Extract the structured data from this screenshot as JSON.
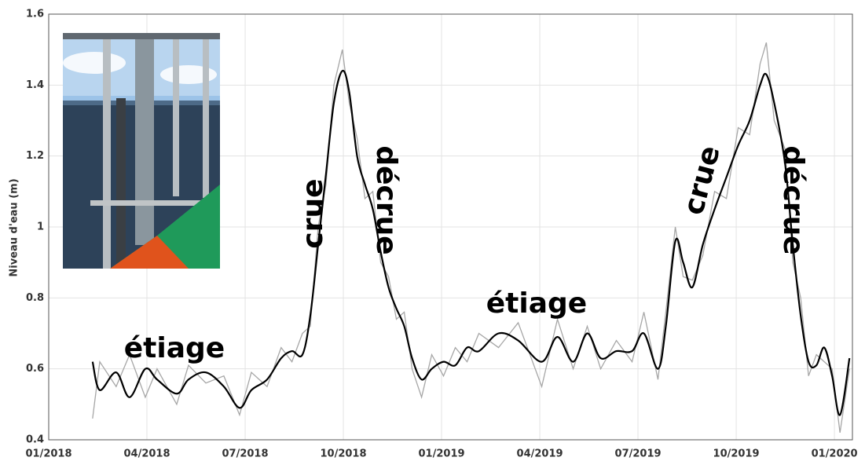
{
  "chart_data": {
    "type": "line",
    "y_label": "Niveau d'eau (m)",
    "annotations": [
      "étiage",
      "crue",
      "décrue",
      "étiage",
      "crue",
      "décrue"
    ],
    "x": [
      1.34,
      1.56,
      2.06,
      2.47,
      2.95,
      3.31,
      3.91,
      4.27,
      4.8,
      5.35,
      5.83,
      6.19,
      6.67,
      7.1,
      7.43,
      7.75,
      7.99,
      8.23,
      8.47,
      8.71,
      8.97,
      9.18,
      9.42,
      9.66,
      9.9,
      10.14,
      10.38,
      10.62,
      10.86,
      11.1,
      11.39,
      11.7,
      12.06,
      12.42,
      12.78,
      13.14,
      13.74,
      14.34,
      15.06,
      15.54,
      16.02,
      16.45,
      16.86,
      17.34,
      17.82,
      18.18,
      18.61,
      18.85,
      19.14,
      19.38,
      19.66,
      19.98,
      20.34,
      20.7,
      21.06,
      21.41,
      21.73,
      21.92,
      22.16,
      22.49,
      22.73,
      22.97,
      23.21,
      23.45,
      23.69,
      23.93,
      24.17,
      24.46
    ],
    "series": [
      {
        "color": "#a6a6a6",
        "values": [
          0.46,
          0.62,
          0.55,
          0.64,
          0.52,
          0.6,
          0.5,
          0.61,
          0.56,
          0.58,
          0.47,
          0.59,
          0.55,
          0.66,
          0.62,
          0.7,
          0.72,
          1.0,
          1.12,
          1.4,
          1.5,
          1.35,
          1.25,
          1.08,
          1.1,
          0.9,
          0.86,
          0.74,
          0.76,
          0.6,
          0.52,
          0.64,
          0.58,
          0.66,
          0.62,
          0.7,
          0.66,
          0.73,
          0.55,
          0.74,
          0.6,
          0.72,
          0.6,
          0.68,
          0.62,
          0.76,
          0.57,
          0.76,
          1.0,
          0.86,
          0.85,
          0.92,
          1.1,
          1.08,
          1.28,
          1.26,
          1.46,
          1.52,
          1.3,
          1.22,
          0.9,
          0.8,
          0.58,
          0.64,
          0.62,
          0.6,
          0.42,
          0.6
        ]
      },
      {
        "color": "#000000",
        "values": [
          0.62,
          0.54,
          0.59,
          0.52,
          0.6,
          0.57,
          0.53,
          0.57,
          0.59,
          0.55,
          0.49,
          0.54,
          0.57,
          0.63,
          0.65,
          0.64,
          0.75,
          0.95,
          1.15,
          1.35,
          1.44,
          1.38,
          1.2,
          1.12,
          1.05,
          0.93,
          0.83,
          0.77,
          0.72,
          0.63,
          0.57,
          0.6,
          0.62,
          0.61,
          0.66,
          0.65,
          0.7,
          0.68,
          0.62,
          0.69,
          0.62,
          0.7,
          0.63,
          0.65,
          0.65,
          0.7,
          0.6,
          0.72,
          0.96,
          0.9,
          0.83,
          0.95,
          1.05,
          1.14,
          1.23,
          1.3,
          1.4,
          1.43,
          1.35,
          1.18,
          0.95,
          0.75,
          0.62,
          0.61,
          0.66,
          0.58,
          0.47,
          0.63
        ]
      }
    ],
    "xlim": [
      0,
      24.55
    ],
    "xticks": [
      {
        "value": 0,
        "label": "01/2018"
      },
      {
        "value": 3,
        "label": "04/2018"
      },
      {
        "value": 6,
        "label": "07/2018"
      },
      {
        "value": 9,
        "label": "10/2018"
      },
      {
        "value": 12,
        "label": "01/2019"
      },
      {
        "value": 15,
        "label": "04/2019"
      },
      {
        "value": 18,
        "label": "07/2019"
      },
      {
        "value": 21,
        "label": "10/2019"
      },
      {
        "value": 24,
        "label": "01/2020"
      }
    ],
    "ylim": [
      0.4,
      1.6
    ],
    "yticks": [
      0.4,
      0.6,
      0.8,
      1,
      1.2,
      1.4,
      1.6
    ],
    "grid": true
  }
}
